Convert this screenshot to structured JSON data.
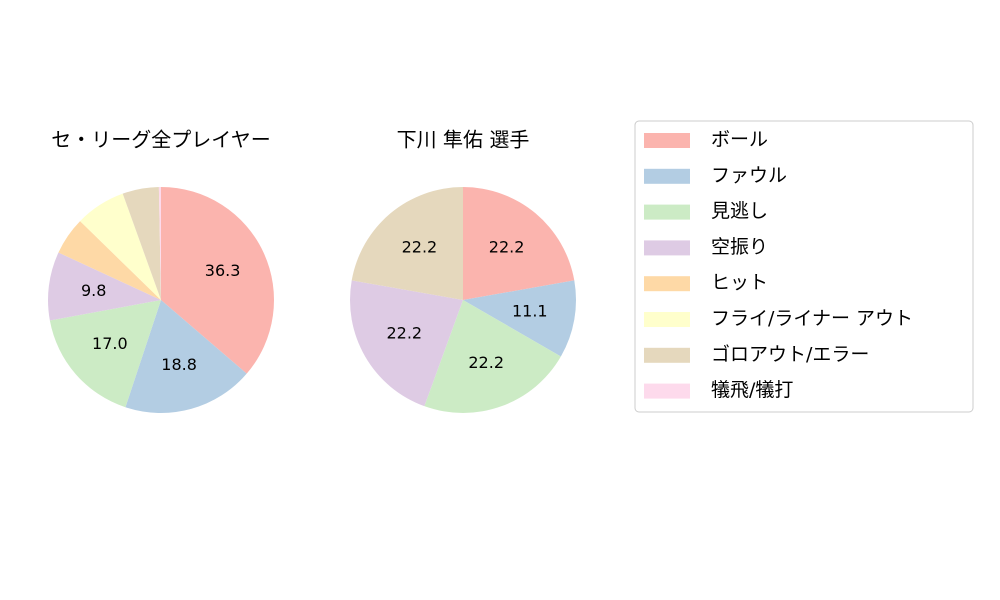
{
  "chart_data": [
    {
      "type": "pie",
      "title": "セ・リーグ全プレイヤー",
      "values": [
        36.3,
        18.8,
        17.0,
        9.8,
        5.4,
        7.2,
        5.2,
        0.3
      ],
      "value_labels": [
        "36.3",
        "18.8",
        "17.0",
        "9.8",
        null,
        null,
        null,
        null
      ]
    },
    {
      "type": "pie",
      "title": "下川 隼佑  選手",
      "values": [
        22.2,
        11.1,
        22.2,
        22.2,
        0,
        0,
        22.2,
        0
      ],
      "value_labels": [
        "22.2",
        "11.1",
        "22.2",
        "22.2",
        null,
        null,
        "22.2",
        null
      ]
    }
  ],
  "legend": {
    "labels": [
      "ボール",
      "ファウル",
      "見逃し",
      "空振り",
      "ヒット",
      "フライ/ライナー アウト",
      "ゴロアウト/エラー",
      "犠飛/犠打"
    ],
    "colors": [
      "#fbb4ae",
      "#b3cde3",
      "#ccebc5",
      "#decbe4",
      "#fed9a6",
      "#ffffcc",
      "#e5d8bd",
      "#fddaec"
    ]
  }
}
